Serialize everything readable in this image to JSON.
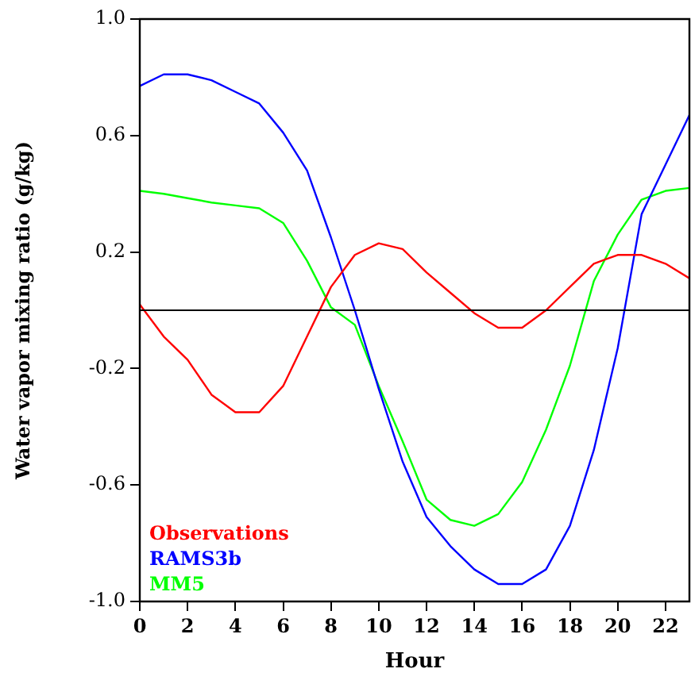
{
  "chart_data": {
    "type": "line",
    "xlabel": "Hour",
    "ylabel": "Water vapor mixing ratio (g/kg)",
    "x": [
      0,
      1,
      2,
      3,
      4,
      5,
      6,
      7,
      8,
      9,
      10,
      11,
      12,
      13,
      14,
      15,
      16,
      17,
      18,
      19,
      20,
      21,
      22,
      23
    ],
    "series": [
      {
        "name": "Observations",
        "color": "#ff0000",
        "values": [
          0.02,
          -0.09,
          -0.17,
          -0.29,
          -0.35,
          -0.35,
          -0.26,
          -0.09,
          0.08,
          0.19,
          0.23,
          0.21,
          0.13,
          0.06,
          -0.01,
          -0.06,
          -0.06,
          0.0,
          0.08,
          0.16,
          0.19,
          0.19,
          0.16,
          0.11
        ]
      },
      {
        "name": "RAMS3b",
        "color": "#0000ff",
        "values": [
          0.77,
          0.81,
          0.81,
          0.79,
          0.75,
          0.71,
          0.61,
          0.48,
          0.25,
          0.0,
          -0.27,
          -0.52,
          -0.71,
          -0.81,
          -0.89,
          -0.94,
          -0.94,
          -0.89,
          -0.74,
          -0.48,
          -0.13,
          0.33,
          0.5,
          0.67
        ]
      },
      {
        "name": "MM5",
        "color": "#00ff00",
        "values": [
          0.41,
          0.4,
          0.385,
          0.37,
          0.36,
          0.35,
          0.3,
          0.17,
          0.01,
          -0.05,
          -0.26,
          -0.45,
          -0.65,
          -0.72,
          -0.74,
          -0.7,
          -0.59,
          -0.41,
          -0.19,
          0.1,
          0.26,
          0.38,
          0.41,
          0.42
        ]
      }
    ],
    "xlim": [
      0,
      23
    ],
    "xticks": [
      0,
      2,
      4,
      6,
      8,
      10,
      12,
      14,
      16,
      18,
      20,
      22
    ],
    "ylim": [
      -1,
      1
    ],
    "yticks": [
      {
        "value": 1,
        "label": "1.0"
      },
      0.6,
      0.2,
      -0.2,
      -0.6,
      {
        "value": -1,
        "label": "-1.0"
      }
    ],
    "ref_lines": [
      {
        "axis": "y",
        "value": 0,
        "color": "#000000"
      }
    ],
    "legend": "bottom left",
    "marker": "none",
    "line_style": "solid"
  }
}
